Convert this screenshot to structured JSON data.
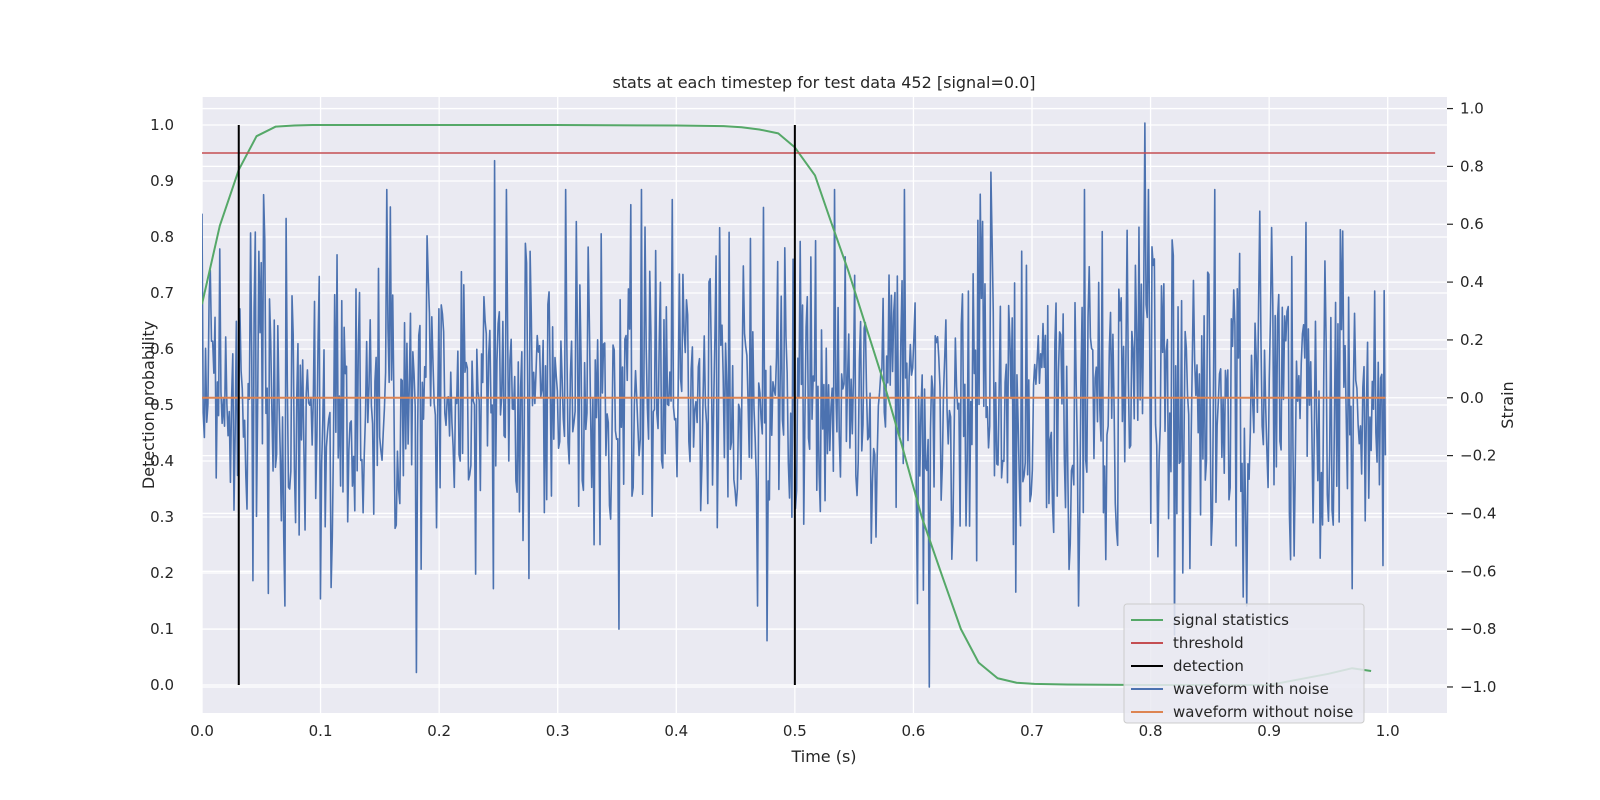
{
  "chart_data": {
    "type": "line",
    "title": "stats at each timestep for test data 452 [signal=0.0]",
    "xlabel": "Time (s)",
    "ylabel_left": "Detection probability",
    "ylabel_right": "Strain",
    "xlim": [
      0.0,
      1.05
    ],
    "ylim_left": [
      -0.05,
      1.05
    ],
    "ylim_right": [
      -1.09,
      1.04
    ],
    "x_ticks": [
      "0.0",
      "0.1",
      "0.2",
      "0.3",
      "0.4",
      "0.5",
      "0.6",
      "0.7",
      "0.8",
      "0.9",
      "1.0"
    ],
    "y_left_ticks": [
      "0.0",
      "0.1",
      "0.2",
      "0.3",
      "0.4",
      "0.5",
      "0.6",
      "0.7",
      "0.8",
      "0.9",
      "1.0"
    ],
    "y_right_ticks": [
      "−1.0",
      "−0.8",
      "−0.6",
      "−0.4",
      "−0.2",
      "0.0",
      "0.2",
      "0.4",
      "0.6",
      "0.8",
      "1.0"
    ],
    "grid": true,
    "background": "#eaeaf2",
    "legend_position": "lower right",
    "series": [
      {
        "name": "signal statistics",
        "axis": "left",
        "color": "#55a868",
        "x": [
          0.0,
          0.015,
          0.031,
          0.046,
          0.062,
          0.078,
          0.093,
          0.125,
          0.2,
          0.3,
          0.4,
          0.44,
          0.455,
          0.47,
          0.486,
          0.5,
          0.517,
          0.53,
          0.545,
          0.56,
          0.575,
          0.59,
          0.607,
          0.625,
          0.64,
          0.655,
          0.671,
          0.687,
          0.702,
          0.73,
          0.8,
          0.9,
          0.95,
          0.97,
          0.986
        ],
        "y": [
          0.68,
          0.82,
          0.92,
          0.98,
          0.997,
          0.999,
          1.0,
          1.0,
          1.0,
          1.0,
          0.999,
          0.998,
          0.996,
          0.992,
          0.985,
          0.96,
          0.91,
          0.83,
          0.74,
          0.64,
          0.54,
          0.43,
          0.3,
          0.19,
          0.1,
          0.04,
          0.012,
          0.004,
          0.002,
          0.001,
          0.0,
          0.0,
          0.02,
          0.03,
          0.025
        ]
      },
      {
        "name": "threshold",
        "axis": "left",
        "color": "#c44e52",
        "x": [
          0.0,
          1.04
        ],
        "y": [
          0.95,
          0.95
        ]
      },
      {
        "name": "detection",
        "axis": "left",
        "color": "#000000",
        "type": "vlines",
        "x": [
          0.031,
          0.5
        ],
        "ymin": 0.0,
        "ymax": 1.0
      },
      {
        "name": "waveform with noise",
        "axis": "right",
        "color": "#4c72b0",
        "x_start": 0.0,
        "x_end": 0.998,
        "n_points": 1000,
        "seed": 452,
        "noise_std": 0.28,
        "extremes": [
          {
            "x": 0.071,
            "y": 0.62
          },
          {
            "x": 0.159,
            "y": 0.66
          },
          {
            "x": 0.181,
            "y": -0.95
          },
          {
            "x": 0.247,
            "y": 0.82
          },
          {
            "x": 0.246,
            "y": -0.66
          },
          {
            "x": 0.352,
            "y": -0.8
          },
          {
            "x": 0.477,
            "y": -0.84
          },
          {
            "x": 0.613,
            "y": -1.0
          },
          {
            "x": 0.665,
            "y": 0.78
          },
          {
            "x": 0.795,
            "y": 0.95
          },
          {
            "x": 0.82,
            "y": -0.82
          },
          {
            "x": 0.97,
            "y": -0.66
          }
        ]
      },
      {
        "name": "waveform without noise",
        "axis": "right",
        "color": "#dd8452",
        "x": [
          0.0,
          0.998
        ],
        "y": [
          0.0,
          0.0
        ]
      }
    ]
  }
}
